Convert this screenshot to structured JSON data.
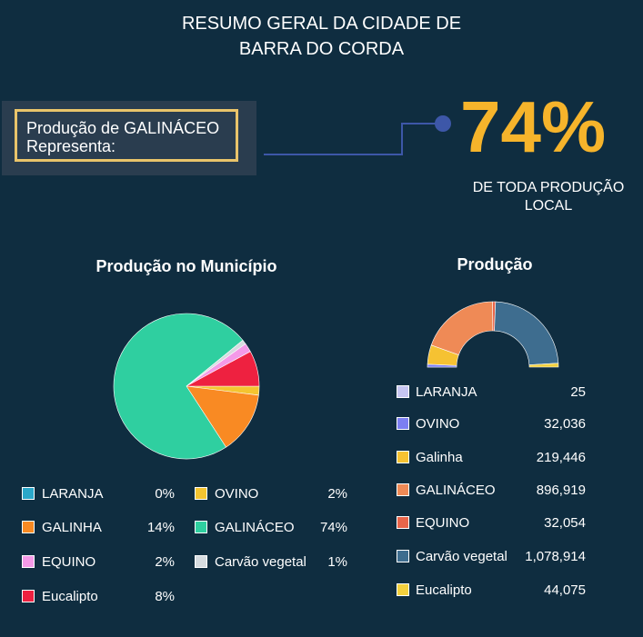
{
  "title": {
    "line1": "RESUMO GERAL DA CIDADE DE",
    "line2": "BARRA DO CORDA"
  },
  "highlight": {
    "line1": "Produção de GALINÁCEO",
    "line2": "Representa:",
    "percent": "74%",
    "sub_line1": "DE TODA PRODUÇÃO",
    "sub_line2": "LOCAL",
    "accent_color": "#f6b42b",
    "border_color": "#e9c46a"
  },
  "chart_data": [
    {
      "type": "pie",
      "title": "Produção no Município",
      "legend_placement": "bottom",
      "slices": [
        {
          "name": "LARANJA",
          "value": 0,
          "label": "0%",
          "color": "#2aa7c9"
        },
        {
          "name": "OVINO",
          "value": 2,
          "label": "2%",
          "color": "#f4c430"
        },
        {
          "name": "GALINHA",
          "value": 14,
          "label": "14%",
          "color": "#f98a23"
        },
        {
          "name": "GALINÁCEO",
          "value": 74,
          "label": "74%",
          "color": "#2fcfa0"
        },
        {
          "name": "EQUINO",
          "value": 2,
          "label": "2%",
          "color": "#f49ae8"
        },
        {
          "name": "Carvão vegetal",
          "value": 1,
          "label": "1%",
          "color": "#d6dce0"
        },
        {
          "name": "Eucalipto",
          "value": 8,
          "label": "8%",
          "color": "#ee2140"
        }
      ],
      "draw_order": [
        "OVINO",
        "GALINHA",
        "GALINÁCEO",
        "Carvão vegetal",
        "EQUINO",
        "Eucalipto",
        "LARANJA"
      ]
    },
    {
      "type": "pie",
      "subtype": "half-donut",
      "title": "Produção",
      "legend_placement": "bottom",
      "slices": [
        {
          "name": "LARANJA",
          "value": 25,
          "label": "25",
          "color": "#c7c6f2"
        },
        {
          "name": "OVINO",
          "value": 32036,
          "label": "32,036",
          "color": "#7c7ff2"
        },
        {
          "name": "Galinha",
          "value": 219446,
          "label": "219,446",
          "color": "#f6c232"
        },
        {
          "name": "GALINÁCEO",
          "value": 896919,
          "label": "896,919",
          "color": "#ef8a56"
        },
        {
          "name": "EQUINO",
          "value": 32054,
          "label": "32,054",
          "color": "#e8654a"
        },
        {
          "name": "Carvão vegetal",
          "value": 1078914,
          "label": "1,078,914",
          "color": "#3e6d8f"
        },
        {
          "name": "Eucalipto",
          "value": 44075,
          "label": "44,075",
          "color": "#f3d03e"
        }
      ]
    }
  ]
}
